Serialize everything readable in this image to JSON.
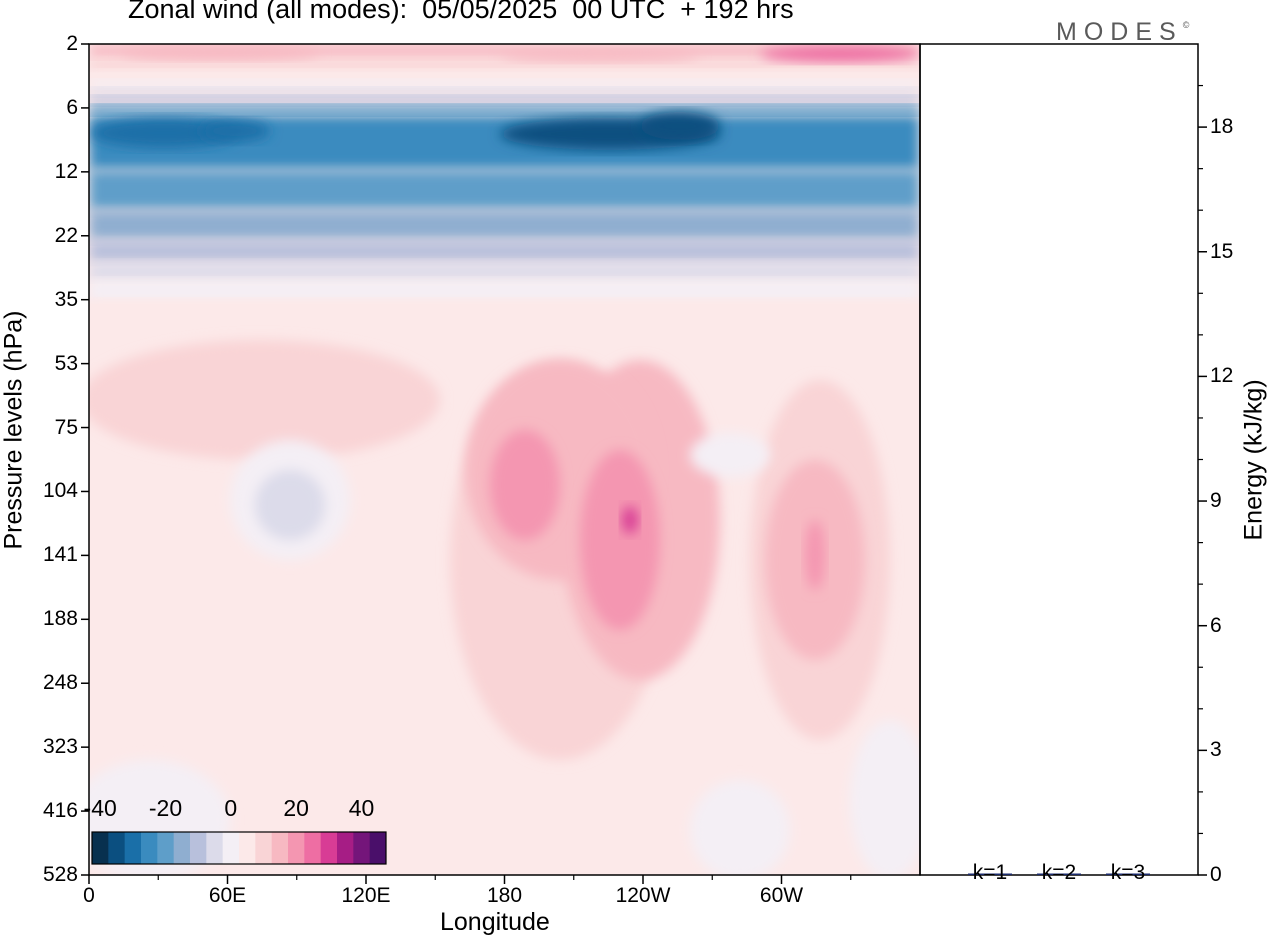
{
  "title": "Zonal wind (all modes):  05/05/2025  00 UTC  + 192 hrs",
  "brand": {
    "name": "MODES",
    "mark": "©"
  },
  "chart_data": [
    {
      "type": "heatmap",
      "variable": "Zonal wind",
      "xlabel": "Longitude",
      "ylabel": "Pressure levels (hPa)",
      "x_ticks": [
        "0",
        "60E",
        "120E",
        "180",
        "120W",
        "60W"
      ],
      "x_tick_degrees": [
        0,
        60,
        120,
        180,
        240,
        300
      ],
      "x_range_degrees": [
        0,
        360
      ],
      "y_ticks": [
        "2",
        "6",
        "12",
        "22",
        "35",
        "53",
        "75",
        "104",
        "141",
        "188",
        "248",
        "323",
        "416",
        "528"
      ],
      "y_scale": "nonlinear (model levels)",
      "colorbar": {
        "ticks": [
          "-40",
          "-20",
          "0",
          "20",
          "40"
        ],
        "levels": [
          -40,
          -35,
          -30,
          -25,
          -20,
          -15,
          -10,
          -5,
          0,
          5,
          10,
          15,
          20,
          25,
          30,
          35,
          40
        ],
        "colors": [
          "#08304f",
          "#0b4f80",
          "#1a6fa8",
          "#3a8bbf",
          "#5e9ec9",
          "#8faed0",
          "#b8c0dc",
          "#dcdbea",
          "#f4eff5",
          "#fce9e9",
          "#f9d4d6",
          "#f7b9c2",
          "#f496b1",
          "#ee6ea3",
          "#d83c95",
          "#a61d85",
          "#74157a",
          "#4a0f6a"
        ]
      },
      "colorbar_placement": "bottom-left",
      "latitude_bands": [
        {
          "levels": "2-5",
          "value": 10
        },
        {
          "levels": "6-12",
          "value": -35
        },
        {
          "levels": "12-22",
          "value": -25
        },
        {
          "levels": "22-30",
          "value": -12
        },
        {
          "levels": "30-40",
          "value": -3
        },
        {
          "levels": "40-528",
          "value": 2
        }
      ],
      "features": [
        {
          "region": "180 to 120W, 75-248 hPa",
          "value": 20
        },
        {
          "region": "130W to 100W, 104-188 hPa",
          "value": 25
        },
        {
          "region": "60W to 45W, 104-188 hPa",
          "value": 20
        },
        {
          "region": "40E to 70E, 90-140 hPa",
          "value": -8
        }
      ]
    },
    {
      "type": "bar",
      "ylabel": "Energy (kJ/kg)",
      "categories": [
        "k=1",
        "k=2",
        "k=3"
      ],
      "values": [
        0.03,
        0.01,
        0.01
      ],
      "ylim": [
        0,
        20
      ],
      "y_ticks": [
        "0",
        "3",
        "6",
        "9",
        "12",
        "15",
        "18"
      ]
    }
  ]
}
